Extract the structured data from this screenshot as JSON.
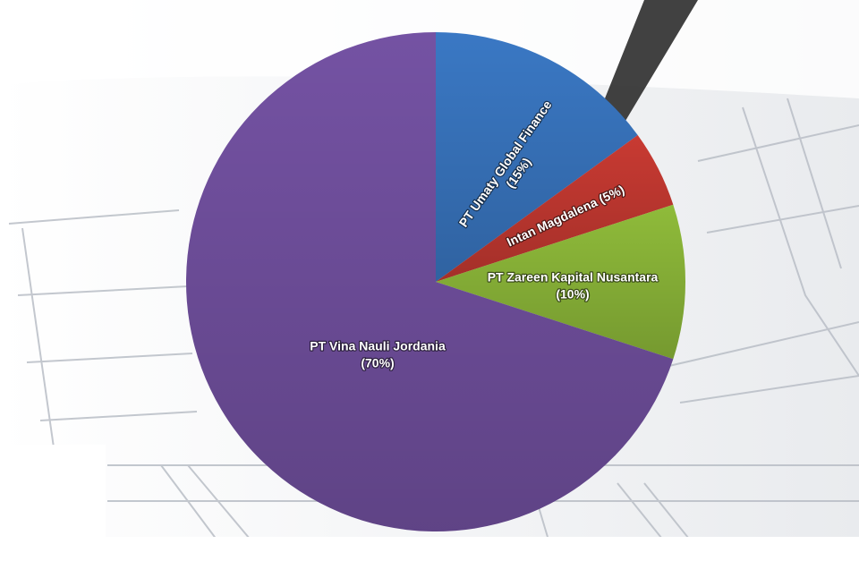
{
  "chart_data": {
    "type": "pie",
    "title": "",
    "slices": [
      {
        "label": "PT Umaty Global Finance",
        "pct_label": "(15%)",
        "value": 15,
        "color": "#3a78c4"
      },
      {
        "label": "Intan Magdalena",
        "pct_label": "(5%)",
        "value": 5,
        "color": "#c83a32"
      },
      {
        "label": "PT Zareen Kapital Nusantara",
        "pct_label": "(10%)",
        "value": 10,
        "color": "#8fbb3a"
      },
      {
        "label": "PT Vina Nauli Jordania",
        "pct_label": "(70%)",
        "value": 70,
        "color": "#7452a3"
      }
    ]
  }
}
